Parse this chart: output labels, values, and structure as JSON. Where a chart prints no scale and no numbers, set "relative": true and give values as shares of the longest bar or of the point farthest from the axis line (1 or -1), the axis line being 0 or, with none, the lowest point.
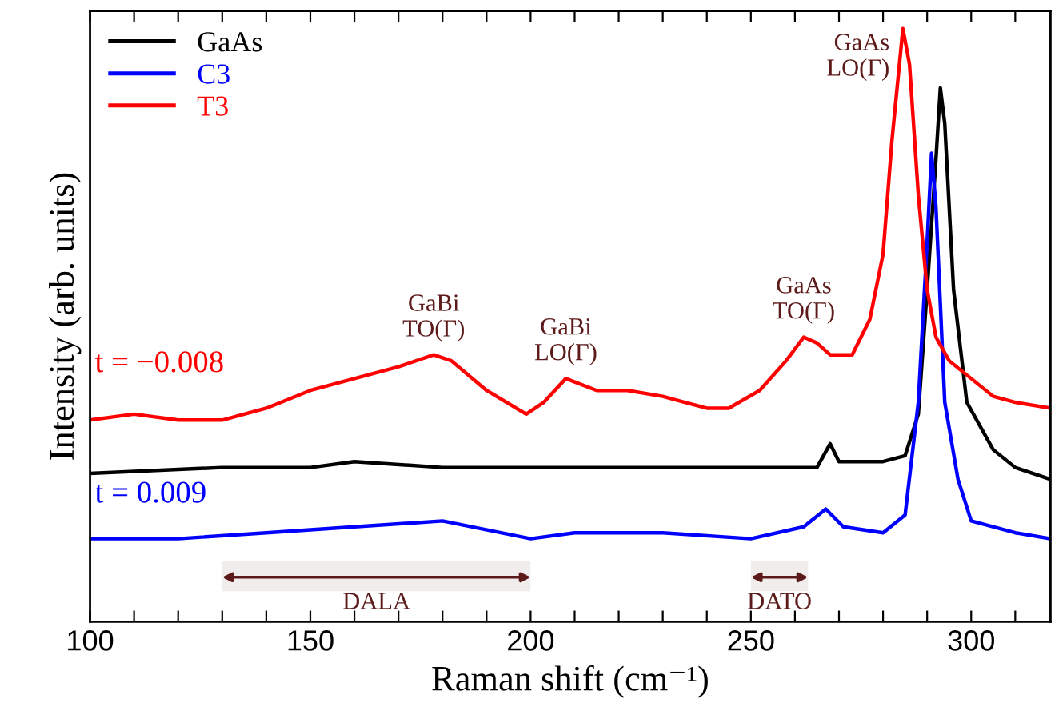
{
  "chart_data": {
    "type": "line",
    "relative": true,
    "xlabel": "Raman shift (cm⁻¹)",
    "ylabel": "Intensity (arb. units)",
    "xlim": [
      100,
      318
    ],
    "xticks": [
      100,
      {
        "value": 110,
        "label": null
      },
      {
        "value": 120,
        "label": null
      },
      {
        "value": 130,
        "label": null
      },
      {
        "value": 140,
        "label": null
      },
      150,
      {
        "value": 160,
        "label": null
      },
      {
        "value": 170,
        "label": null
      },
      {
        "value": 180,
        "label": null
      },
      {
        "value": 190,
        "label": null
      },
      200,
      {
        "value": 210,
        "label": null
      },
      {
        "value": 220,
        "label": null
      },
      {
        "value": 230,
        "label": null
      },
      {
        "value": 240,
        "label": null
      },
      250,
      {
        "value": 260,
        "label": null
      },
      {
        "value": 270,
        "label": null
      },
      {
        "value": 280,
        "label": null
      },
      {
        "value": 290,
        "label": null
      },
      300,
      {
        "value": 310,
        "label": null
      }
    ],
    "legend": "top left",
    "grid": false,
    "line_style": "solid",
    "marker": "none",
    "series": [
      {
        "name": "GaAs",
        "color": "#000000",
        "x": [
          100,
          130,
          150,
          160,
          180,
          200,
          240,
          265,
          268,
          270,
          280,
          285,
          288,
          290,
          292,
          293,
          294,
          296,
          299,
          305,
          310,
          318
        ],
        "values": [
          0.25,
          0.26,
          0.26,
          0.27,
          0.26,
          0.26,
          0.26,
          0.26,
          0.3,
          0.27,
          0.27,
          0.28,
          0.35,
          0.56,
          0.78,
          0.9,
          0.84,
          0.56,
          0.37,
          0.29,
          0.26,
          0.24
        ]
      },
      {
        "name": "C3",
        "color": "#0000ff",
        "x": [
          100,
          120,
          140,
          160,
          180,
          200,
          210,
          230,
          250,
          262,
          267,
          271,
          280,
          285,
          288,
          290,
          291,
          292,
          294,
          297,
          300,
          310,
          318
        ],
        "values": [
          0.14,
          0.14,
          0.15,
          0.16,
          0.17,
          0.14,
          0.15,
          0.15,
          0.14,
          0.16,
          0.19,
          0.16,
          0.15,
          0.18,
          0.37,
          0.64,
          0.79,
          0.7,
          0.37,
          0.24,
          0.17,
          0.15,
          0.14
        ]
      },
      {
        "name": "T3",
        "color": "#ff0000",
        "x": [
          100,
          110,
          120,
          130,
          140,
          150,
          160,
          170,
          178,
          182,
          190,
          199,
          203,
          208,
          215,
          222,
          230,
          235,
          240,
          245,
          252,
          258,
          262,
          265,
          268,
          273,
          277,
          280,
          282,
          284.5,
          286,
          288,
          290,
          292,
          295,
          300,
          305,
          310,
          318
        ],
        "values": [
          0.34,
          0.35,
          0.34,
          0.34,
          0.36,
          0.39,
          0.41,
          0.43,
          0.45,
          0.44,
          0.39,
          0.35,
          0.37,
          0.41,
          0.39,
          0.39,
          0.38,
          0.37,
          0.36,
          0.36,
          0.39,
          0.44,
          0.48,
          0.47,
          0.45,
          0.45,
          0.51,
          0.62,
          0.81,
          1.0,
          0.94,
          0.72,
          0.56,
          0.48,
          0.44,
          0.41,
          0.38,
          0.37,
          0.36
        ]
      }
    ],
    "annotations": [
      {
        "text": "GaBi\nTO(Γ)",
        "x": 178,
        "y": 0.45
      },
      {
        "text": "GaBi\nLO(Γ)",
        "x": 208,
        "y": 0.41
      },
      {
        "text": "GaAs\nTO(Γ)",
        "x": 262,
        "y": 0.48
      },
      {
        "text": "GaAs\nLO(Γ)",
        "x": 284.5,
        "y": 1.0
      },
      "t = −0.008",
      "t = 0.009"
    ],
    "bands": [
      {
        "axis": "x",
        "from": 130,
        "to": 200,
        "label": "DALA",
        "color": "#5c1a1a"
      },
      {
        "axis": "x",
        "from": 250,
        "to": 263,
        "label": "DATO",
        "color": "#5c1a1a"
      }
    ]
  }
}
